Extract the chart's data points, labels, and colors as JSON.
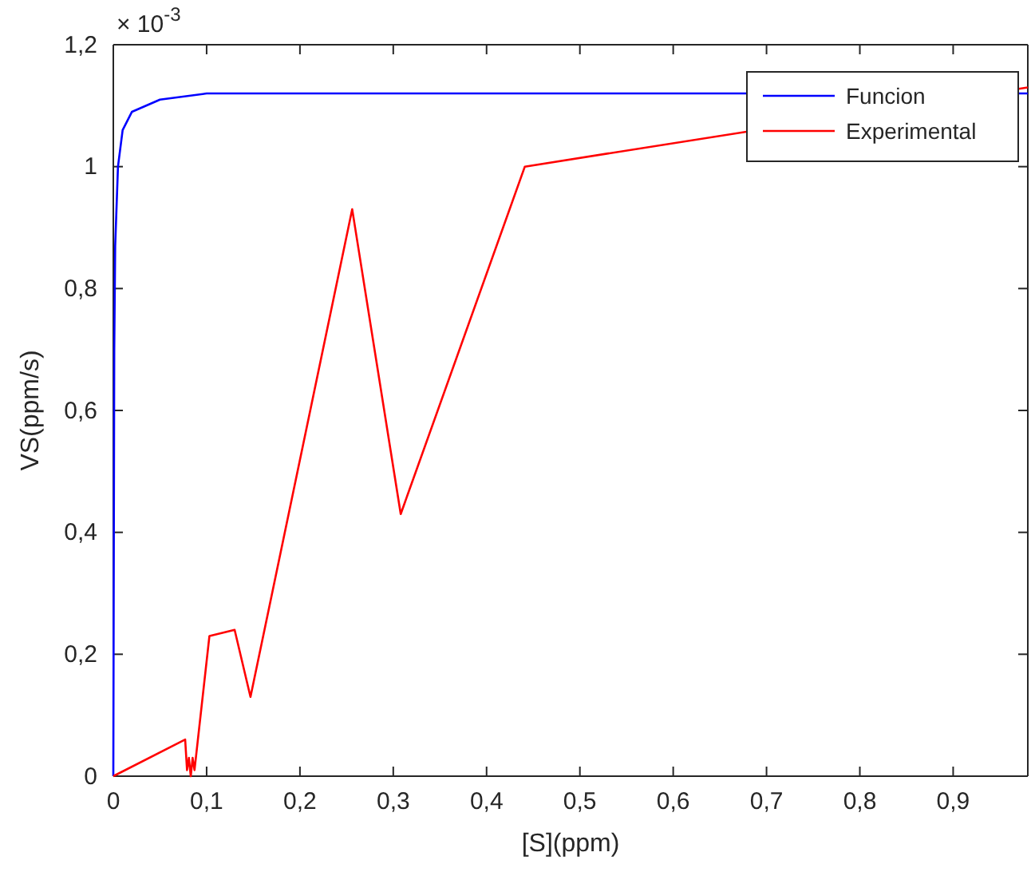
{
  "chart_data": {
    "type": "line",
    "xlabel": "[S](ppm)",
    "ylabel": "VS(ppm/s)",
    "annotations": [
      "× 10$^{-3}$"
    ],
    "xlim": [
      0,
      0.98
    ],
    "ylim": [
      0,
      1.2
    ],
    "xticks": [
      0,
      {
        "value": 0.1,
        "label": "0,1"
      },
      {
        "value": 0.2,
        "label": "0,2"
      },
      {
        "value": 0.3,
        "label": "0,3"
      },
      {
        "value": 0.4,
        "label": "0,4"
      },
      {
        "value": 0.5,
        "label": "0,5"
      },
      {
        "value": 0.6,
        "label": "0,6"
      },
      {
        "value": 0.7,
        "label": "0,7"
      },
      {
        "value": 0.8,
        "label": "0,8"
      },
      {
        "value": 0.9,
        "label": "0,9"
      }
    ],
    "yticks": [
      0,
      {
        "value": 0.2,
        "label": "0,2"
      },
      {
        "value": 0.4,
        "label": "0,4"
      },
      {
        "value": 0.6,
        "label": "0,6"
      },
      {
        "value": 0.8,
        "label": "0,8"
      },
      1,
      {
        "value": 1.2,
        "label": "1,2"
      }
    ],
    "grid": false,
    "legend": "top right",
    "line_style": "solid",
    "marker": "none",
    "series": [
      {
        "name": "Funcion",
        "color": "#0000ff",
        "x": [
          0,
          0.001,
          0.002,
          0.005,
          0.01,
          0.02,
          0.05,
          0.1,
          0.2,
          0.5,
          0.98
        ],
        "values": [
          0,
          0.7,
          0.87,
          1.0,
          1.06,
          1.09,
          1.11,
          1.12,
          1.12,
          1.12,
          1.12
        ]
      },
      {
        "name": "Experimental",
        "color": "#ff0000",
        "x": [
          0,
          0.077,
          0.079,
          0.081,
          0.083,
          0.085,
          0.087,
          0.103,
          0.13,
          0.147,
          0.256,
          0.308,
          0.441,
          0.98
        ],
        "values": [
          0,
          0.06,
          0.01,
          0.03,
          0,
          0.03,
          0.01,
          0.23,
          0.24,
          0.13,
          0.93,
          0.43,
          1.0,
          1.13
        ]
      }
    ]
  }
}
